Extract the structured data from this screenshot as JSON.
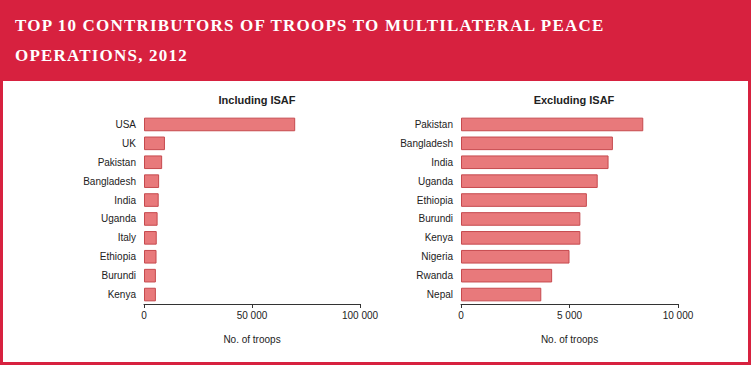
{
  "title": "TOP 10 CONTRIBUTORS OF TROOPS TO MULTILATERAL PEACE OPERATIONS, 2012",
  "chart_data": [
    {
      "type": "bar",
      "orientation": "horizontal",
      "title": "Including ISAF",
      "x_label": "No. of troops",
      "categories": [
        "USA",
        "UK",
        "Pakistan",
        "Bangladesh",
        "India",
        "Uganda",
        "Italy",
        "Ethiopia",
        "Burundi",
        "Kenya"
      ],
      "values": [
        70000,
        9700,
        8400,
        7000,
        6800,
        6300,
        5900,
        5800,
        5500,
        5500
      ],
      "color": "#e8797b",
      "xlim": [
        0,
        100000
      ],
      "xticks": [
        0,
        {
          "value": 50000,
          "label": "50 000"
        },
        {
          "value": 100000,
          "label": "100 000"
        }
      ],
      "grid": false
    },
    {
      "type": "bar",
      "orientation": "horizontal",
      "title": "Excluding ISAF",
      "x_label": "No. of troops",
      "categories": [
        "Pakistan",
        "Bangladesh",
        "India",
        "Uganda",
        "Ethiopia",
        "Burundi",
        "Kenya",
        "Nigeria",
        "Rwanda",
        "Nepal"
      ],
      "values": [
        8400,
        7000,
        6800,
        6300,
        5800,
        5500,
        5500,
        5000,
        4200,
        3700
      ],
      "color": "#e8797b",
      "xlim": [
        0,
        10000
      ],
      "xticks": [
        0,
        {
          "value": 5000,
          "label": "5 000"
        },
        {
          "value": 10000,
          "label": "10 000"
        }
      ],
      "grid": false
    }
  ]
}
